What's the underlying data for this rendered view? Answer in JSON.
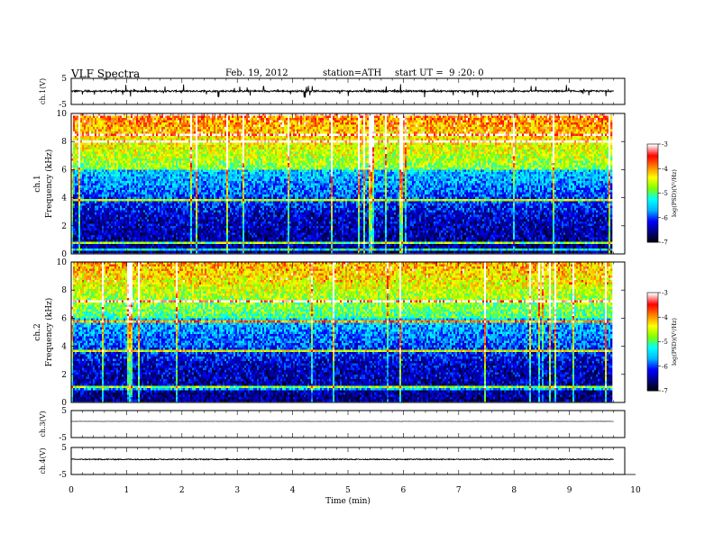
{
  "header": {
    "title": "VLF Spectra",
    "date": "Feb. 19, 2012",
    "station": "station=ATH",
    "start": "start UT =  9 :20: 0"
  },
  "colors": {
    "axis": "#000000",
    "background": "#ffffff",
    "colormap": [
      "#000000",
      "#000080",
      "#0000ff",
      "#00b4ff",
      "#00ffff",
      "#7fff00",
      "#ffff00",
      "#ff8000",
      "#ff0000",
      "#ffffff"
    ]
  },
  "chart_data": [
    {
      "name": "ch1-waveform",
      "type": "line",
      "ylabel": "ch.1(V)",
      "xlim": [
        0,
        10
      ],
      "ylim": [
        -5,
        5
      ],
      "yticks": [
        5,
        -5
      ],
      "data_extent": [
        0,
        9.8
      ],
      "baseline": 0.1,
      "noise_amplitude": 0.3,
      "spike_amplitude": 2.5
    },
    {
      "name": "ch1-spectrogram",
      "type": "heatmap",
      "ylabel": "Frequency (kHz)",
      "channel_label": "ch.1",
      "xlim": [
        0,
        10
      ],
      "ylim": [
        0,
        10
      ],
      "yticks": [
        10,
        8,
        6,
        4,
        2,
        0
      ],
      "data_extent": [
        0,
        9.8
      ],
      "colorbar": {
        "label": "log(PSD)(V²/Hz)",
        "range": [
          -7,
          -3
        ],
        "ticks": [
          "-3",
          "-4",
          "-5",
          "-6",
          "-7"
        ]
      }
    },
    {
      "name": "ch2-spectrogram",
      "type": "heatmap",
      "ylabel": "Frequency (kHz)",
      "channel_label": "ch.2",
      "xlim": [
        0,
        10
      ],
      "ylim": [
        0,
        10
      ],
      "yticks": [
        10,
        8,
        6,
        4,
        2,
        0
      ],
      "data_extent": [
        0,
        9.8
      ],
      "colorbar": {
        "label": "log(PSD)(V²/Hz)",
        "range": [
          -7,
          -3
        ],
        "ticks": [
          "-3",
          "-4",
          "-5",
          "-6",
          "-7"
        ]
      }
    },
    {
      "name": "ch3-waveform",
      "type": "line",
      "ylabel": "ch.3(V)",
      "xlim": [
        0,
        10
      ],
      "ylim": [
        -5,
        5
      ],
      "yticks": [
        5,
        -5
      ],
      "data_extent": [
        0,
        9.8
      ],
      "baseline": 1.0,
      "noise_amplitude": 0.05,
      "spike_amplitude": 0
    },
    {
      "name": "ch4-waveform",
      "type": "line",
      "ylabel": "ch.4(V)",
      "xlim": [
        0,
        10
      ],
      "ylim": [
        -5,
        5
      ],
      "yticks": [
        5,
        -5
      ],
      "data_extent": [
        0,
        9.8
      ],
      "baseline": 0.6,
      "noise_amplitude": 0.18,
      "spike_amplitude": 0
    }
  ],
  "x_axis": {
    "label": "Time (min)",
    "ticks": [
      "0",
      "1",
      "2",
      "3",
      "4",
      "5",
      "6",
      "7",
      "8",
      "9",
      "10"
    ]
  }
}
